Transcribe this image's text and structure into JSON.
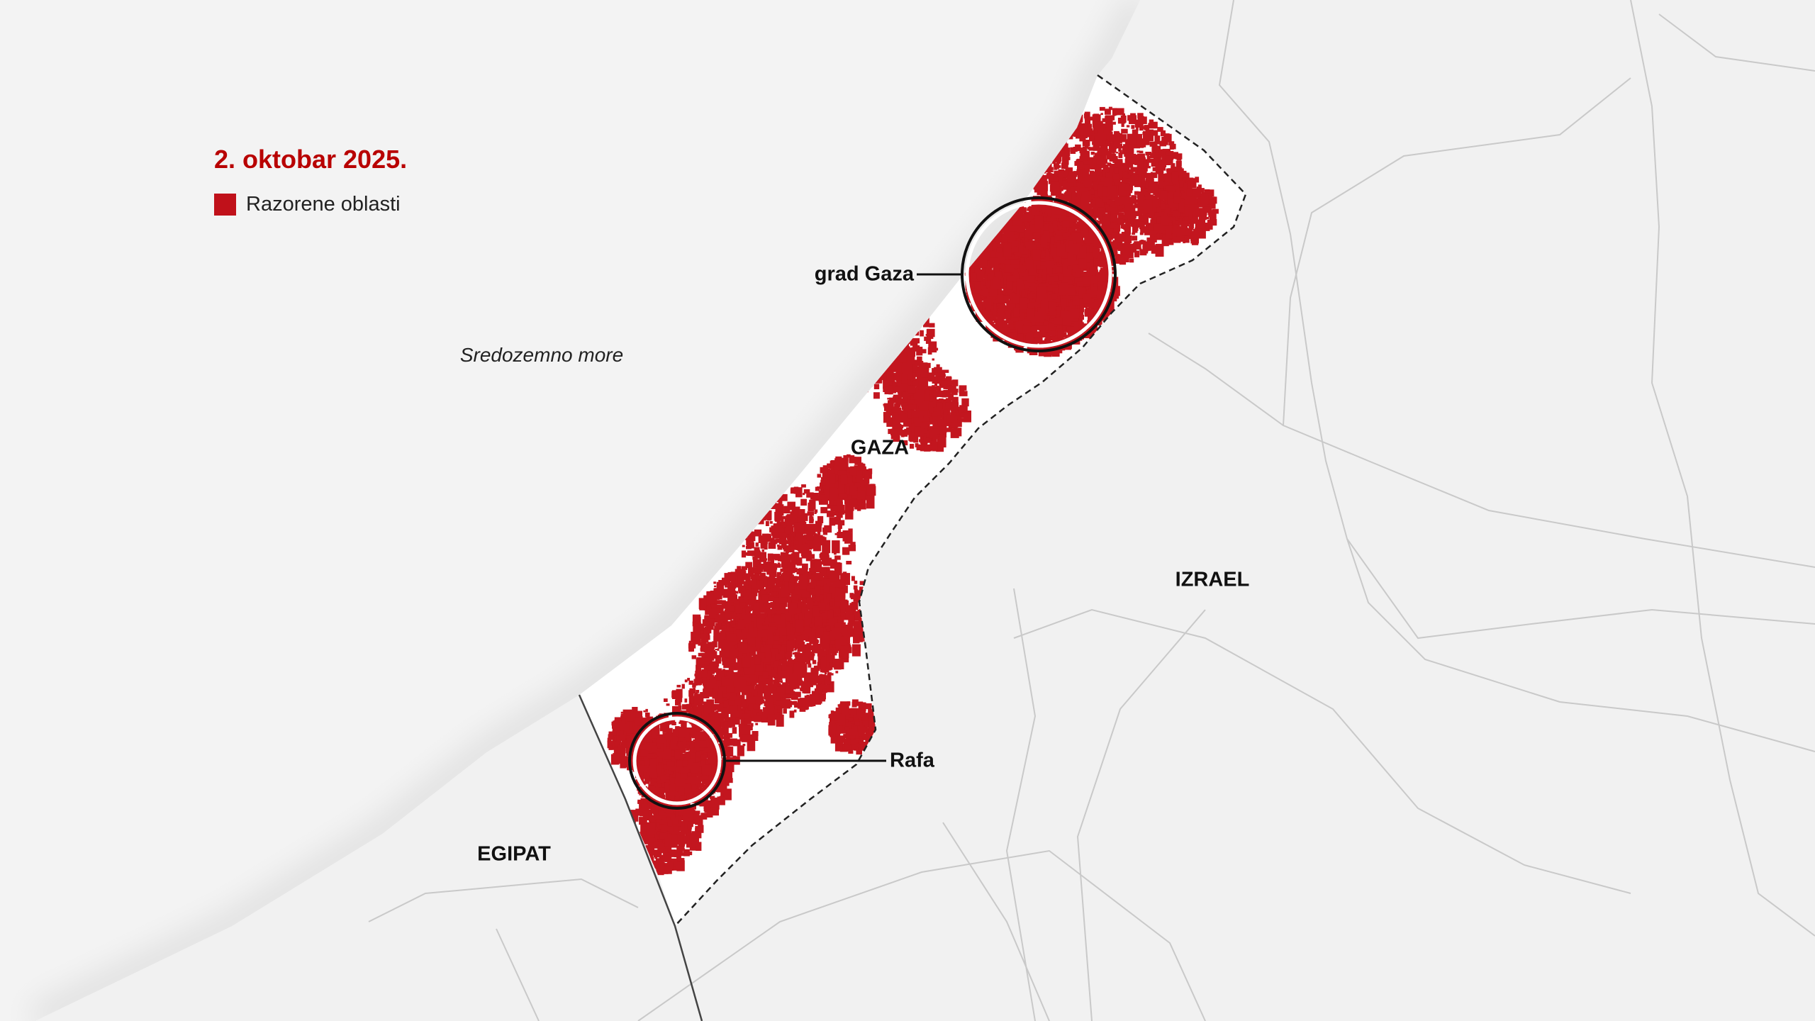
{
  "title": "2. oktobar 2025.",
  "legend": {
    "label": "Razorene oblasti",
    "color": "#c0111a"
  },
  "colors": {
    "title": "#b80000",
    "damage": "#c3161f",
    "sea": "#f5f5f5",
    "land": "#f1f1f1",
    "strip": "#ffffff"
  },
  "labels": {
    "sea": "Sredozemno more",
    "gaza_city": "grad Gaza",
    "gaza": "GAZA",
    "rafah": "Rafa",
    "israel": "IZRAEL",
    "egypt": "EGIPAT"
  }
}
